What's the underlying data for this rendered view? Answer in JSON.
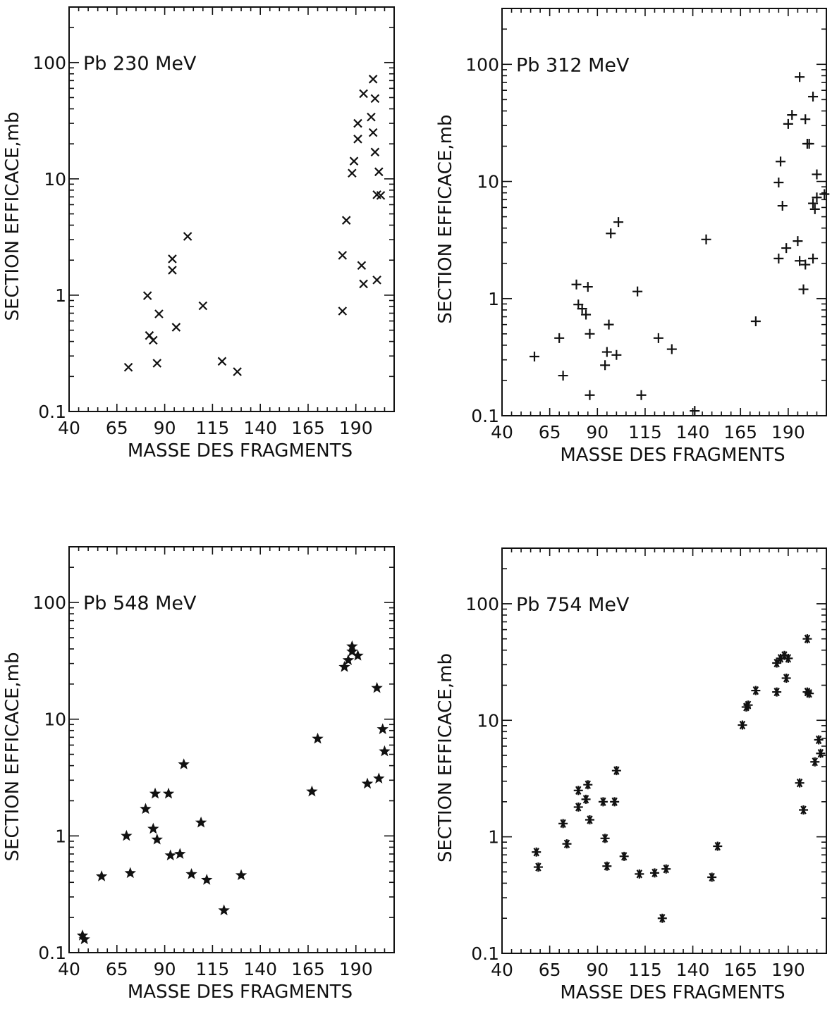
{
  "chart_data": [
    {
      "type": "scatter",
      "title": "Pb  230  MeV",
      "xlabel": "MASSE DES FRAGMENTS",
      "ylabel": "SECTION  EFFICACE,mb",
      "xlim": [
        40,
        210
      ],
      "ylim": [
        0.1,
        300
      ],
      "yscale": "log",
      "xticks": [
        "40",
        "65",
        "90",
        "115",
        "140",
        "165",
        "190"
      ],
      "yticks": [
        "0.1",
        "1",
        "10",
        "100"
      ],
      "marker": "x",
      "points": [
        [
          71,
          0.24
        ],
        [
          81,
          0.99
        ],
        [
          82,
          0.45
        ],
        [
          84,
          0.41
        ],
        [
          86,
          0.26
        ],
        [
          87,
          0.69
        ],
        [
          94,
          2.05
        ],
        [
          94,
          1.64
        ],
        [
          96,
          0.53
        ],
        [
          102,
          3.2
        ],
        [
          110,
          0.81
        ],
        [
          120,
          0.27
        ],
        [
          128,
          0.22
        ],
        [
          183,
          0.73
        ],
        [
          183,
          2.2
        ],
        [
          185,
          4.4
        ],
        [
          188,
          11.2
        ],
        [
          189,
          14.2
        ],
        [
          191,
          22
        ],
        [
          191,
          30
        ],
        [
          193,
          1.8
        ],
        [
          194,
          1.25
        ],
        [
          194,
          54
        ],
        [
          198,
          34
        ],
        [
          199,
          72
        ],
        [
          199,
          25
        ],
        [
          200,
          17
        ],
        [
          200,
          49
        ],
        [
          201,
          1.35
        ],
        [
          201,
          7.3
        ],
        [
          202,
          11.5
        ],
        [
          203,
          7.2
        ]
      ]
    },
    {
      "type": "scatter",
      "title": "Pb  312  MeV",
      "xlabel": "MASSE DES FRAGMENTS",
      "ylabel": "SECTION  EFFICACE,mb",
      "xlim": [
        40,
        210
      ],
      "ylim": [
        0.1,
        300
      ],
      "yscale": "log",
      "xticks": [
        "40",
        "65",
        "90",
        "115",
        "140",
        "165",
        "190"
      ],
      "yticks": [
        "0.1",
        "1",
        "10",
        "100"
      ],
      "marker": "+",
      "points": [
        [
          57,
          0.32
        ],
        [
          70,
          0.46
        ],
        [
          72,
          0.22
        ],
        [
          79,
          1.32
        ],
        [
          80,
          0.89
        ],
        [
          82,
          0.82
        ],
        [
          84,
          0.73
        ],
        [
          85,
          1.26
        ],
        [
          86,
          0.15
        ],
        [
          86,
          0.5
        ],
        [
          94,
          0.27
        ],
        [
          95,
          0.35
        ],
        [
          96,
          0.6
        ],
        [
          97,
          3.6
        ],
        [
          100,
          0.33
        ],
        [
          101,
          4.5
        ],
        [
          111,
          1.15
        ],
        [
          113,
          0.15
        ],
        [
          122,
          0.46
        ],
        [
          129,
          0.37
        ],
        [
          141,
          0.11
        ],
        [
          147,
          3.2
        ],
        [
          173,
          0.64
        ],
        [
          185,
          2.2
        ],
        [
          185,
          9.8
        ],
        [
          186,
          14.8
        ],
        [
          187,
          6.2
        ],
        [
          189,
          2.7
        ],
        [
          190,
          31
        ],
        [
          192,
          37
        ],
        [
          195,
          3.1
        ],
        [
          196,
          2.1
        ],
        [
          196,
          78
        ],
        [
          198,
          1.2
        ],
        [
          199,
          1.95
        ],
        [
          199,
          34
        ],
        [
          200,
          21
        ],
        [
          201,
          21
        ],
        [
          203,
          6.5
        ],
        [
          203,
          2.2
        ],
        [
          203,
          53
        ],
        [
          204,
          5.8
        ],
        [
          205,
          11.5
        ],
        [
          205,
          7.3
        ],
        [
          209,
          7.8
        ]
      ]
    },
    {
      "type": "scatter",
      "title": "Pb  548  MeV",
      "xlabel": "MASSE DES FRAGMENTS",
      "ylabel": "SECTION  EFFICACE,mb",
      "xlim": [
        40,
        210
      ],
      "ylim": [
        0.1,
        300
      ],
      "yscale": "log",
      "xticks": [
        "40",
        "65",
        "90",
        "115",
        "140",
        "165",
        "190"
      ],
      "yticks": [
        "0.1",
        "1",
        "10",
        "100"
      ],
      "marker": "star5",
      "points": [
        [
          47,
          0.14
        ],
        [
          48,
          0.13
        ],
        [
          57,
          0.45
        ],
        [
          70,
          1.0
        ],
        [
          72,
          0.48
        ],
        [
          80,
          1.7
        ],
        [
          84,
          1.15
        ],
        [
          85,
          2.3
        ],
        [
          86,
          0.93
        ],
        [
          92,
          2.3
        ],
        [
          93,
          0.68
        ],
        [
          98,
          0.7
        ],
        [
          100,
          4.1
        ],
        [
          104,
          0.47
        ],
        [
          109,
          1.3
        ],
        [
          112,
          0.42
        ],
        [
          121,
          0.23
        ],
        [
          130,
          0.46
        ],
        [
          167,
          2.4
        ],
        [
          170,
          6.8
        ],
        [
          184,
          28
        ],
        [
          186,
          32
        ],
        [
          188,
          38
        ],
        [
          188,
          42
        ],
        [
          191,
          35
        ],
        [
          196,
          2.8
        ],
        [
          201,
          18.5
        ],
        [
          202,
          3.1
        ],
        [
          204,
          8.2
        ],
        [
          205,
          5.3
        ]
      ]
    },
    {
      "type": "scatter",
      "title": "Pb  754  MeV",
      "xlabel": "MASSE DES FRAGMENTS",
      "ylabel": "SECTION  EFFICACE,mb",
      "xlim": [
        40,
        210
      ],
      "ylim": [
        0.1,
        300
      ],
      "yscale": "log",
      "xticks": [
        "40",
        "65",
        "90",
        "115",
        "140",
        "165",
        "190"
      ],
      "yticks": [
        "0.1",
        "1",
        "10",
        "100"
      ],
      "marker": "asterisk",
      "points": [
        [
          58,
          0.74
        ],
        [
          59,
          0.55
        ],
        [
          72,
          1.3
        ],
        [
          74,
          0.87
        ],
        [
          80,
          1.8
        ],
        [
          80,
          2.5
        ],
        [
          84,
          2.1
        ],
        [
          85,
          2.8
        ],
        [
          86,
          1.4
        ],
        [
          93,
          2.0
        ],
        [
          94,
          0.97
        ],
        [
          95,
          0.56
        ],
        [
          99,
          2.0
        ],
        [
          100,
          3.7
        ],
        [
          104,
          0.68
        ],
        [
          112,
          0.48
        ],
        [
          120,
          0.49
        ],
        [
          124,
          0.2
        ],
        [
          126,
          0.53
        ],
        [
          150,
          0.45
        ],
        [
          153,
          0.83
        ],
        [
          166,
          9.1
        ],
        [
          168,
          13
        ],
        [
          169,
          13.5
        ],
        [
          173,
          18
        ],
        [
          184,
          31
        ],
        [
          184,
          17.5
        ],
        [
          186,
          34
        ],
        [
          188,
          36
        ],
        [
          189,
          23
        ],
        [
          190,
          34
        ],
        [
          196,
          2.9
        ],
        [
          198,
          1.7
        ],
        [
          200,
          17.5
        ],
        [
          200,
          50
        ],
        [
          201,
          17
        ],
        [
          204,
          4.4
        ],
        [
          206,
          6.8
        ],
        [
          207,
          5.2
        ]
      ]
    }
  ]
}
